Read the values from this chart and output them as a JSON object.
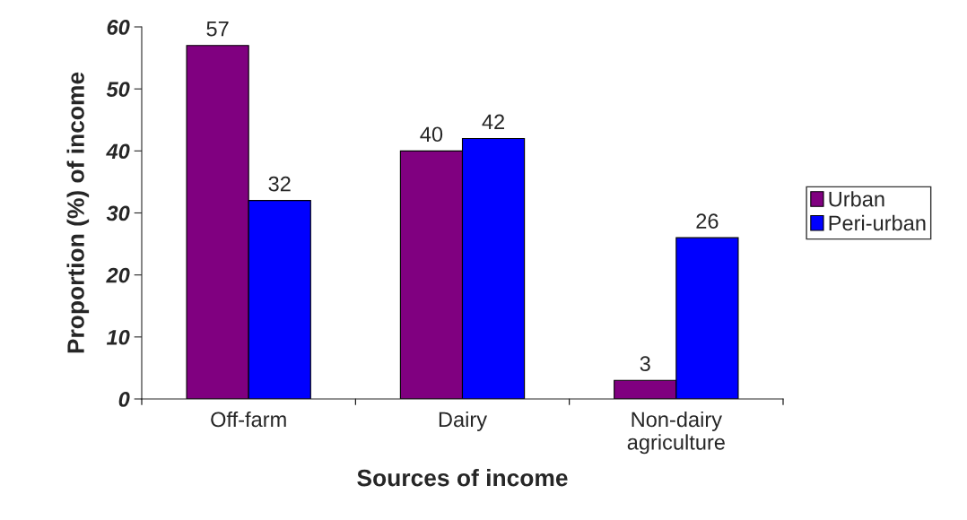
{
  "chart_data": {
    "type": "bar",
    "xlabel": "Sources of income",
    "ylabel": "Proportion (%) of income",
    "categories": [
      "Off-farm",
      "Dairy",
      "Non-dairy\nagriculture"
    ],
    "series": [
      {
        "name": "Urban",
        "color": "#800080",
        "values": [
          57,
          40,
          3
        ]
      },
      {
        "name": "Peri-urban",
        "color": "#0000ff",
        "values": [
          32,
          42,
          26
        ]
      }
    ],
    "ylim": [
      0,
      60
    ],
    "yticks": [
      0,
      10,
      20,
      30,
      40,
      50,
      60
    ],
    "data_labels": true,
    "legend": "right",
    "grid": false
  }
}
